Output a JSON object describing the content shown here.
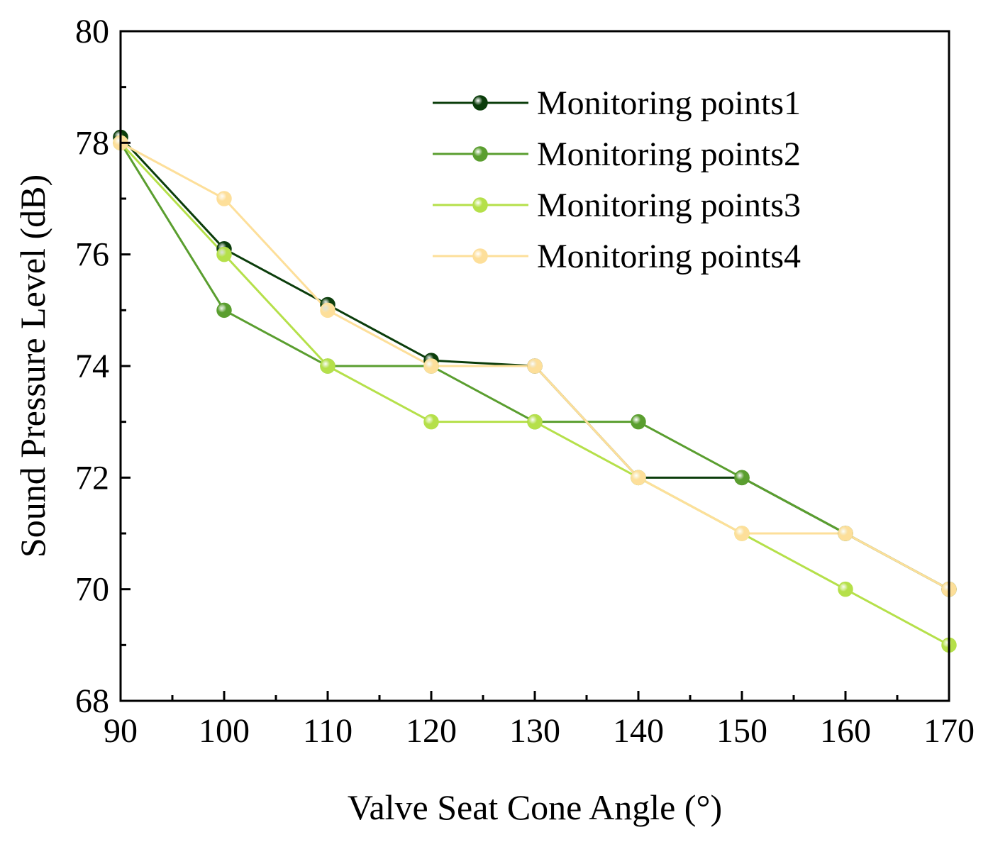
{
  "chart_data": {
    "type": "line",
    "xlabel": "Valve Seat Cone Angle (°)",
    "ylabel": "Sound Pressure Level (dB)",
    "xlim": [
      90,
      170
    ],
    "ylim": [
      68,
      80
    ],
    "xticks": [
      90,
      100,
      110,
      120,
      130,
      140,
      150,
      160,
      170
    ],
    "yticks": [
      68,
      70,
      72,
      74,
      76,
      78,
      80
    ],
    "grid": false,
    "legend_position": "top-right",
    "x": [
      90,
      100,
      110,
      120,
      130,
      140,
      150,
      160,
      170
    ],
    "series": [
      {
        "name": "Monitoring points1",
        "color": "#0b3d0b",
        "values": [
          78.1,
          76.1,
          75.1,
          74.1,
          74.0,
          72.0,
          72.0,
          71.0,
          70.0
        ]
      },
      {
        "name": "Monitoring points2",
        "color": "#5a9e2f",
        "values": [
          78.0,
          75.0,
          74.0,
          74.0,
          73.0,
          73.0,
          72.0,
          71.0,
          70.0
        ]
      },
      {
        "name": "Monitoring points3",
        "color": "#b5e04a",
        "values": [
          78.0,
          76.0,
          74.0,
          73.0,
          73.0,
          72.0,
          71.0,
          70.0,
          69.0
        ]
      },
      {
        "name": "Monitoring points4",
        "color": "#fddf9a",
        "values": [
          78.0,
          77.0,
          75.0,
          74.0,
          74.0,
          72.0,
          71.0,
          71.0,
          70.0
        ]
      }
    ]
  }
}
